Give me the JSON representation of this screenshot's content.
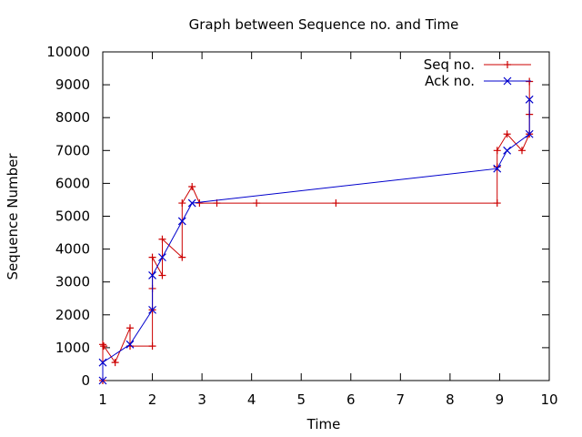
{
  "chart_data": {
    "type": "line",
    "title": "Graph between Sequence no. and Time",
    "xlabel": "Time",
    "ylabel": "Sequence Number",
    "xlim": [
      1,
      10
    ],
    "ylim": [
      0,
      10000
    ],
    "xticks": [
      "1",
      "2",
      "3",
      "4",
      "5",
      "6",
      "7",
      "8",
      "9",
      "10"
    ],
    "yticks": [
      "0",
      "1000",
      "2000",
      "3000",
      "4000",
      "5000",
      "6000",
      "7000",
      "8000",
      "9000",
      "10000"
    ],
    "grid": false,
    "legend_position": "top-right",
    "series": [
      {
        "name": "Seq no.",
        "color": "#cc0000",
        "marker": "plus",
        "points": [
          [
            1.0,
            0
          ],
          [
            1.0,
            1100
          ],
          [
            1.02,
            1050
          ],
          [
            1.25,
            550
          ],
          [
            1.55,
            1600
          ],
          [
            1.55,
            1050
          ],
          [
            2.0,
            1050
          ],
          [
            2.0,
            2150
          ],
          [
            2.0,
            2800
          ],
          [
            2.0,
            3750
          ],
          [
            2.2,
            3200
          ],
          [
            2.2,
            4300
          ],
          [
            2.6,
            3750
          ],
          [
            2.6,
            5400
          ],
          [
            2.8,
            5900
          ],
          [
            2.95,
            5400
          ],
          [
            3.3,
            5400
          ],
          [
            4.1,
            5400
          ],
          [
            5.7,
            5400
          ],
          [
            8.95,
            5400
          ],
          [
            8.95,
            6500
          ],
          [
            8.95,
            7000
          ],
          [
            9.15,
            7500
          ],
          [
            9.45,
            7000
          ],
          [
            9.6,
            7500
          ],
          [
            9.6,
            8100
          ],
          [
            9.6,
            9100
          ]
        ]
      },
      {
        "name": "Ack no.",
        "color": "#0000cc",
        "marker": "cross",
        "points": [
          [
            1.0,
            0
          ],
          [
            1.0,
            550
          ],
          [
            1.55,
            1100
          ],
          [
            2.0,
            2150
          ],
          [
            2.0,
            3200
          ],
          [
            2.2,
            3750
          ],
          [
            2.6,
            4850
          ],
          [
            2.8,
            5400
          ],
          [
            8.95,
            6450
          ],
          [
            9.15,
            7000
          ],
          [
            9.6,
            7500
          ],
          [
            9.6,
            8550
          ]
        ]
      }
    ]
  }
}
